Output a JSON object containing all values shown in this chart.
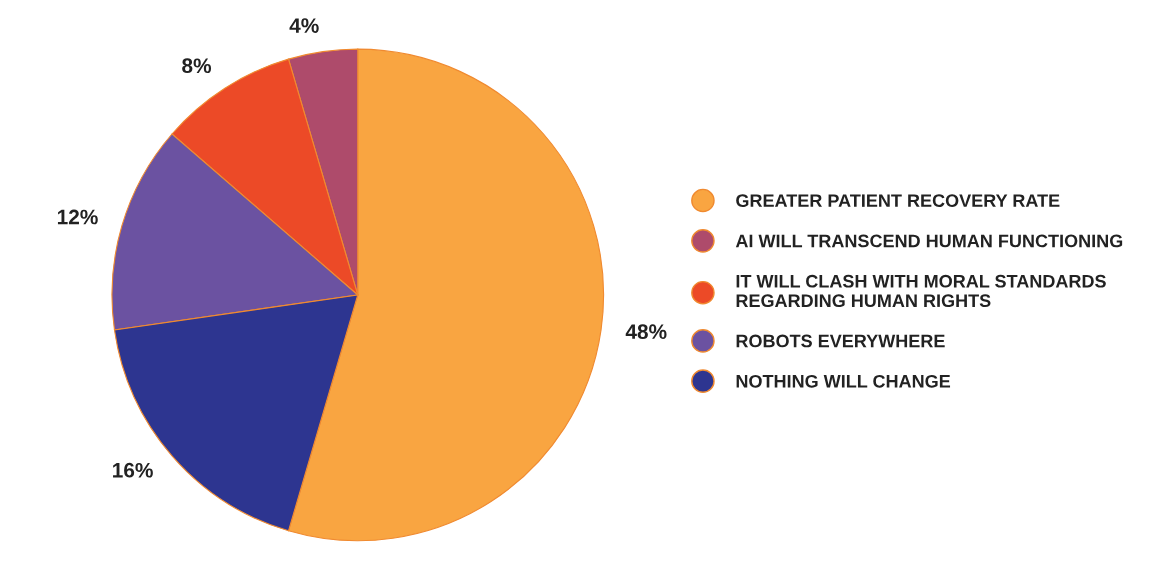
{
  "chart_data": {
    "type": "pie",
    "categories": [
      "GREATER PATIENT RECOVERY RATE",
      "AI WILL TRANSCEND HUMAN FUNCTIONING",
      "IT WILL CLASH WITH MORAL STANDARDS\nREGARDING HUMAN RIGHTS",
      "ROBOTS EVERYWHERE",
      "NOTHING WILL CHANGE"
    ],
    "values": [
      48,
      4,
      8,
      12,
      16
    ],
    "colors": [
      "#f9a541",
      "#ae4b6b",
      "#ec4a27",
      "#6b52a1",
      "#2d3590"
    ],
    "value_labels": [
      "48%",
      "4%",
      "8%",
      "12%",
      "16%"
    ],
    "legend": "right"
  }
}
